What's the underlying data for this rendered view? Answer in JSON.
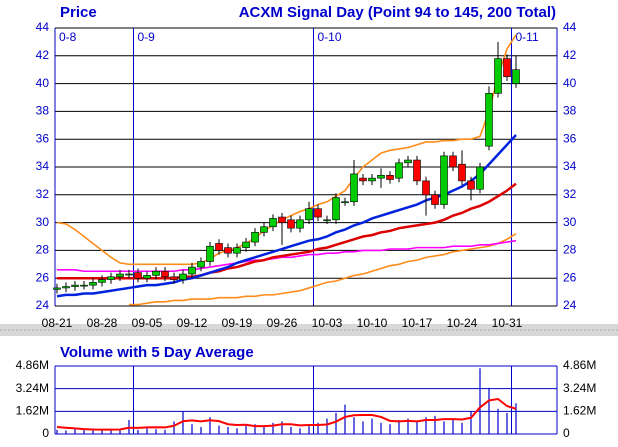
{
  "chart_data": [
    {
      "type": "candlestick",
      "title": "ACXM Signal Day (Point 94 to 145, 200 Total)",
      "y_label": "Price",
      "categories": [
        "08-21",
        null,
        null,
        null,
        null,
        "08-28",
        null,
        null,
        null,
        null,
        "09-05",
        null,
        null,
        null,
        null,
        "09-12",
        null,
        null,
        null,
        null,
        "09-19",
        null,
        null,
        null,
        null,
        "09-26",
        null,
        null,
        null,
        null,
        "10-03",
        null,
        null,
        null,
        null,
        "10-10",
        null,
        null,
        null,
        null,
        "10-17",
        null,
        null,
        null,
        null,
        "10-24",
        null,
        null,
        null,
        null,
        "10-31",
        null
      ],
      "months": [
        "0-8",
        null,
        null,
        null,
        null,
        null,
        null,
        null,
        null,
        "0-9",
        null,
        null,
        null,
        null,
        null,
        null,
        null,
        null,
        null,
        null,
        null,
        null,
        null,
        null,
        null,
        null,
        null,
        null,
        null,
        "0-10",
        null,
        null,
        null,
        null,
        null,
        null,
        null,
        null,
        null,
        null,
        null,
        null,
        null,
        null,
        null,
        null,
        null,
        null,
        null,
        null,
        null,
        "0-11"
      ],
      "open": [
        25.2,
        25.3,
        25.4,
        25.5,
        25.5,
        25.7,
        25.9,
        26.1,
        26.3,
        26.4,
        26.0,
        26.2,
        26.5,
        26.1,
        25.9,
        26.3,
        26.8,
        27.2,
        28.5,
        28.2,
        27.8,
        28.2,
        28.6,
        29.3,
        29.7,
        30.4,
        30.2,
        29.6,
        30.2,
        31.0,
        30.2,
        30.2,
        31.5,
        31.5,
        33.2,
        33.0,
        33.2,
        33.4,
        33.2,
        34.3,
        34.5,
        33.0,
        32.0,
        31.3,
        34.8,
        34.2,
        33.0,
        32.4,
        35.5,
        39.3,
        41.8,
        40.0
      ],
      "high": [
        25.6,
        25.7,
        25.8,
        25.8,
        26.0,
        26.2,
        26.4,
        26.6,
        26.6,
        26.7,
        26.5,
        26.8,
        26.8,
        26.4,
        26.6,
        27.1,
        27.5,
        28.6,
        28.8,
        28.5,
        28.5,
        28.9,
        29.6,
        30.0,
        30.6,
        30.7,
        30.5,
        30.5,
        31.5,
        31.3,
        30.5,
        32.1,
        31.8,
        34.5,
        33.5,
        33.5,
        33.9,
        33.7,
        34.6,
        34.8,
        34.8,
        33.3,
        32.3,
        35.1,
        35.1,
        35.2,
        33.3,
        34.3,
        39.8,
        43.0,
        42.1,
        42.0
      ],
      "low": [
        24.9,
        25.0,
        25.1,
        25.2,
        25.2,
        25.4,
        25.6,
        25.8,
        26.0,
        25.7,
        25.7,
        25.9,
        25.8,
        25.6,
        25.6,
        26.0,
        26.5,
        26.9,
        27.7,
        27.5,
        27.5,
        27.9,
        28.3,
        29.0,
        29.4,
        28.4,
        29.3,
        29.3,
        29.9,
        30.1,
        29.9,
        29.9,
        31.2,
        31.2,
        32.7,
        32.7,
        32.5,
        32.8,
        32.9,
        34.0,
        32.7,
        30.5,
        31.0,
        31.0,
        33.7,
        32.7,
        31.6,
        32.1,
        35.2,
        39.0,
        40.2,
        39.7
      ],
      "close": [
        25.3,
        25.4,
        25.5,
        25.5,
        25.7,
        25.9,
        26.1,
        26.3,
        26.3,
        26.0,
        26.2,
        26.5,
        26.1,
        25.9,
        26.3,
        26.8,
        27.2,
        28.3,
        28.0,
        27.8,
        28.2,
        28.6,
        29.3,
        29.7,
        30.3,
        30.0,
        29.6,
        30.2,
        31.0,
        30.4,
        30.2,
        31.8,
        31.5,
        33.5,
        33.0,
        33.2,
        33.4,
        33.1,
        34.3,
        34.5,
        33.0,
        32.0,
        31.3,
        34.8,
        34.0,
        33.0,
        32.4,
        34.0,
        39.3,
        41.8,
        40.5,
        41.0
      ],
      "up_color": "#00cc00",
      "down_color": "#ff0000",
      "lines": [
        {
          "color": "#ff8c1a",
          "values": [
            30.0,
            29.9,
            29.5,
            29.0,
            28.5,
            28.0,
            27.5,
            27.1,
            27.0,
            27.0,
            27.0,
            27.0,
            27.0,
            27.0,
            27.0,
            27.0,
            27.1,
            27.4,
            27.8,
            28.0,
            28.2,
            28.5,
            28.9,
            29.4,
            29.8,
            30.2,
            30.5,
            30.8,
            31.0,
            31.3,
            31.5,
            31.9,
            32.3,
            33.2,
            34.0,
            34.5,
            35.0,
            35.2,
            35.3,
            35.4,
            35.6,
            35.8,
            35.8,
            35.9,
            35.9,
            36.0,
            36.0,
            36.2,
            38.0,
            40.5,
            42.5,
            43.5
          ]
        },
        {
          "color": "#ff8c1a",
          "values": [
            null,
            null,
            null,
            null,
            null,
            null,
            null,
            null,
            24.1,
            24.1,
            24.2,
            24.3,
            24.3,
            24.4,
            24.4,
            24.5,
            24.5,
            24.5,
            24.6,
            24.6,
            24.6,
            24.7,
            24.7,
            24.8,
            24.8,
            24.9,
            25.0,
            25.1,
            25.3,
            25.5,
            25.7,
            25.8,
            26.0,
            26.2,
            26.3,
            26.5,
            26.7,
            26.9,
            27.0,
            27.2,
            27.3,
            27.5,
            27.6,
            27.7,
            27.9,
            28.0,
            28.1,
            28.2,
            28.3,
            28.5,
            28.8,
            29.2
          ]
        },
        {
          "color": "#ff00ff",
          "values": [
            26.6,
            26.6,
            26.6,
            26.5,
            26.5,
            26.5,
            26.5,
            26.5,
            26.5,
            26.5,
            26.5,
            26.5,
            26.5,
            26.5,
            26.6,
            26.6,
            26.7,
            26.8,
            26.9,
            27.0,
            27.1,
            27.2,
            27.3,
            27.3,
            27.4,
            27.5,
            27.5,
            27.6,
            27.7,
            27.7,
            27.8,
            27.8,
            27.9,
            27.9,
            28.0,
            28.0,
            28.0,
            28.1,
            28.1,
            28.1,
            28.2,
            28.2,
            28.2,
            28.2,
            28.3,
            28.3,
            28.3,
            28.4,
            28.4,
            28.5,
            28.6,
            28.7
          ]
        },
        {
          "color": "#dd0000",
          "values": [
            26.0,
            26.0,
            26.0,
            26.0,
            26.0,
            26.0,
            26.0,
            26.0,
            26.0,
            26.0,
            26.0,
            26.0,
            26.0,
            26.0,
            26.1,
            26.1,
            26.2,
            26.4,
            26.5,
            26.7,
            26.8,
            27.0,
            27.2,
            27.3,
            27.5,
            27.6,
            27.7,
            27.8,
            27.9,
            28.1,
            28.2,
            28.4,
            28.6,
            28.8,
            29.0,
            29.1,
            29.3,
            29.4,
            29.6,
            29.7,
            29.8,
            29.9,
            30.0,
            30.2,
            30.5,
            30.7,
            31.0,
            31.2,
            31.5,
            31.9,
            32.3,
            32.8
          ]
        },
        {
          "color": "#0022dd",
          "values": [
            24.7,
            24.8,
            24.8,
            24.9,
            24.9,
            25.0,
            25.1,
            25.2,
            25.3,
            25.4,
            25.5,
            25.5,
            25.6,
            25.7,
            25.9,
            26.0,
            26.2,
            26.4,
            26.6,
            26.8,
            27.1,
            27.3,
            27.5,
            27.7,
            27.9,
            28.1,
            28.3,
            28.5,
            28.7,
            28.8,
            29.0,
            29.3,
            29.5,
            29.8,
            30.0,
            30.3,
            30.5,
            30.7,
            30.9,
            31.1,
            31.3,
            31.6,
            31.8,
            32.0,
            32.3,
            32.6,
            33.0,
            33.5,
            34.2,
            34.9,
            35.6,
            36.3
          ]
        }
      ],
      "ylim": [
        24,
        44
      ],
      "yticks": [
        24,
        26,
        28,
        30,
        32,
        34,
        36,
        38,
        40,
        42,
        44
      ],
      "grid": true
    },
    {
      "type": "bar",
      "title": "Volume with 5 Day Average",
      "color": "#0000cc",
      "values": [
        300000,
        250000,
        350000,
        300000,
        400000,
        250000,
        300000,
        350000,
        1000000,
        300000,
        400000,
        350000,
        300000,
        900000,
        1600000,
        700000,
        500000,
        1200000,
        600000,
        500000,
        400000,
        600000,
        700000,
        500000,
        800000,
        900000,
        500000,
        400000,
        600000,
        800000,
        1100000,
        1500000,
        2100000,
        1200000,
        900000,
        1100000,
        800000,
        700000,
        1000000,
        1100000,
        900000,
        1200000,
        1300000,
        900000,
        1000000,
        800000,
        1600000,
        4700000,
        3300000,
        1800000,
        1500000,
        2200000
      ],
      "average": {
        "color": "#ff0000",
        "values": [
          500000,
          450000,
          400000,
          350000,
          320000,
          310000,
          310000,
          320000,
          450000,
          440000,
          470000,
          480000,
          470000,
          590000,
          910000,
          970000,
          900000,
          980000,
          920000,
          700000,
          640000,
          660000,
          560000,
          560000,
          600000,
          700000,
          700000,
          620000,
          640000,
          640000,
          680000,
          880000,
          1220000,
          1340000,
          1360000,
          1360000,
          1220000,
          940000,
          900000,
          940000,
          900000,
          1000000,
          1000000,
          1060000,
          1060000,
          1040000,
          1160000,
          1900000,
          2400000,
          2500000,
          2000000,
          1800000
        ]
      },
      "ylim": [
        0,
        4860000
      ],
      "yticks": [
        0,
        {
          "value": 1620000,
          "label": "1.62M"
        },
        {
          "value": 3240000,
          "label": "3.24M"
        },
        {
          "value": 4860000,
          "label": "4.86M"
        }
      ],
      "grid": true
    }
  ]
}
